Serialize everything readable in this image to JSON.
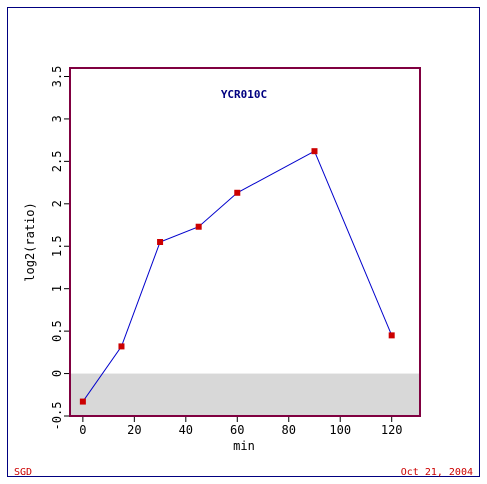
{
  "footer": {
    "left_text": "SGD",
    "right_text": "Oct 21, 2004"
  },
  "colors": {
    "frame": "#000080",
    "plot_border": "#800040",
    "line": "#0000cc",
    "marker": "#cc0000",
    "title": "#000080",
    "negative_band": "#d8d8d8",
    "axis_text": "#000000"
  },
  "chart_data": {
    "type": "line",
    "title": "YCR010C",
    "xlabel": "min",
    "ylabel": "log2(ratio)",
    "xlim": [
      -5,
      131
    ],
    "ylim": [
      -0.5,
      3.6
    ],
    "xticks": [
      0,
      20,
      40,
      60,
      80,
      100,
      120
    ],
    "yticks": [
      -0.5,
      0,
      0.5,
      1,
      1.5,
      2,
      2.5,
      3,
      3.5
    ],
    "negative_region_shaded": true,
    "grid": false,
    "series": [
      {
        "x": [
          0,
          15,
          30,
          45,
          60,
          90,
          120
        ],
        "y": [
          -0.33,
          0.32,
          1.55,
          1.73,
          2.13,
          2.62,
          0.45
        ]
      }
    ]
  }
}
